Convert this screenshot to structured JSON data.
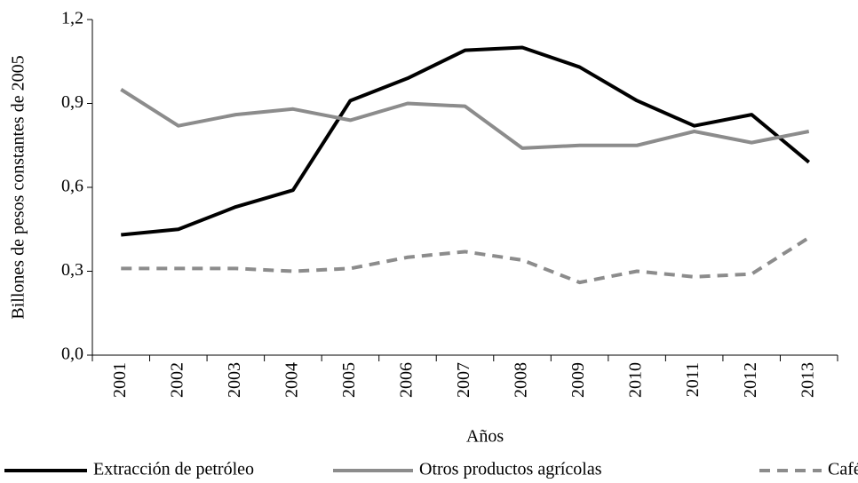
{
  "chart_data": {
    "type": "line",
    "x_label": "Años",
    "y_label": "Billones de pesos constantes de 2005",
    "categories": [
      "2001",
      "2002",
      "2003",
      "2004",
      "2005",
      "2006",
      "2007",
      "2008",
      "2009",
      "2010",
      "2011",
      "2012",
      "2013"
    ],
    "series": [
      {
        "name": "Extracción de petróleo",
        "color": "#000000",
        "style": "solid",
        "values": [
          0.43,
          0.45,
          0.53,
          0.59,
          0.91,
          0.99,
          1.09,
          1.1,
          1.03,
          0.91,
          0.82,
          0.86,
          0.69
        ]
      },
      {
        "name": "Otros productos agrícolas",
        "color": "#8c8c8c",
        "style": "solid",
        "values": [
          0.95,
          0.82,
          0.86,
          0.88,
          0.84,
          0.9,
          0.89,
          0.74,
          0.75,
          0.75,
          0.8,
          0.76,
          0.8
        ]
      },
      {
        "name": "Café",
        "color": "#8c8c8c",
        "style": "dashed",
        "values": [
          0.31,
          0.31,
          0.31,
          0.3,
          0.31,
          0.35,
          0.37,
          0.34,
          0.26,
          0.3,
          0.28,
          0.29,
          0.42
        ]
      }
    ],
    "ylim": [
      0,
      1.2
    ],
    "yticks": [
      {
        "value": 0,
        "label": "0,0"
      },
      {
        "value": 0.3,
        "label": "0,3"
      },
      {
        "value": 0.6,
        "label": "0,6"
      },
      {
        "value": 0.9,
        "label": "0,9"
      },
      {
        "value": 1.2,
        "label": "1,2"
      }
    ],
    "grid": false,
    "legend": "bottom"
  }
}
